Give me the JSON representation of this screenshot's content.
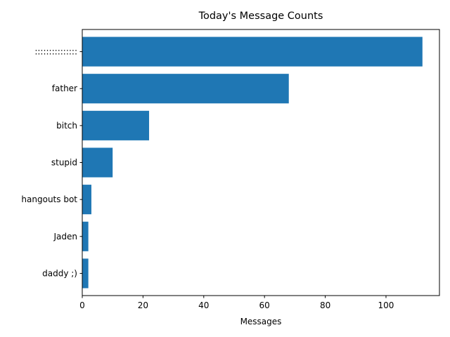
{
  "chart_data": {
    "type": "bar",
    "orientation": "horizontal",
    "title": "Today's Message Counts",
    "xlabel": "Messages",
    "ylabel": "",
    "categories": [
      ":::::::::::::::",
      "father",
      "bitch",
      "stupid",
      "hangouts bot",
      "Jaden",
      "daddy ;)"
    ],
    "values": [
      112,
      68,
      22,
      10,
      3,
      2,
      2
    ],
    "xlim": [
      0,
      117.6
    ],
    "xticks": [
      0,
      20,
      40,
      60,
      80,
      100
    ],
    "grid": false,
    "legend": "none",
    "bar_color": "#1f77b4"
  }
}
